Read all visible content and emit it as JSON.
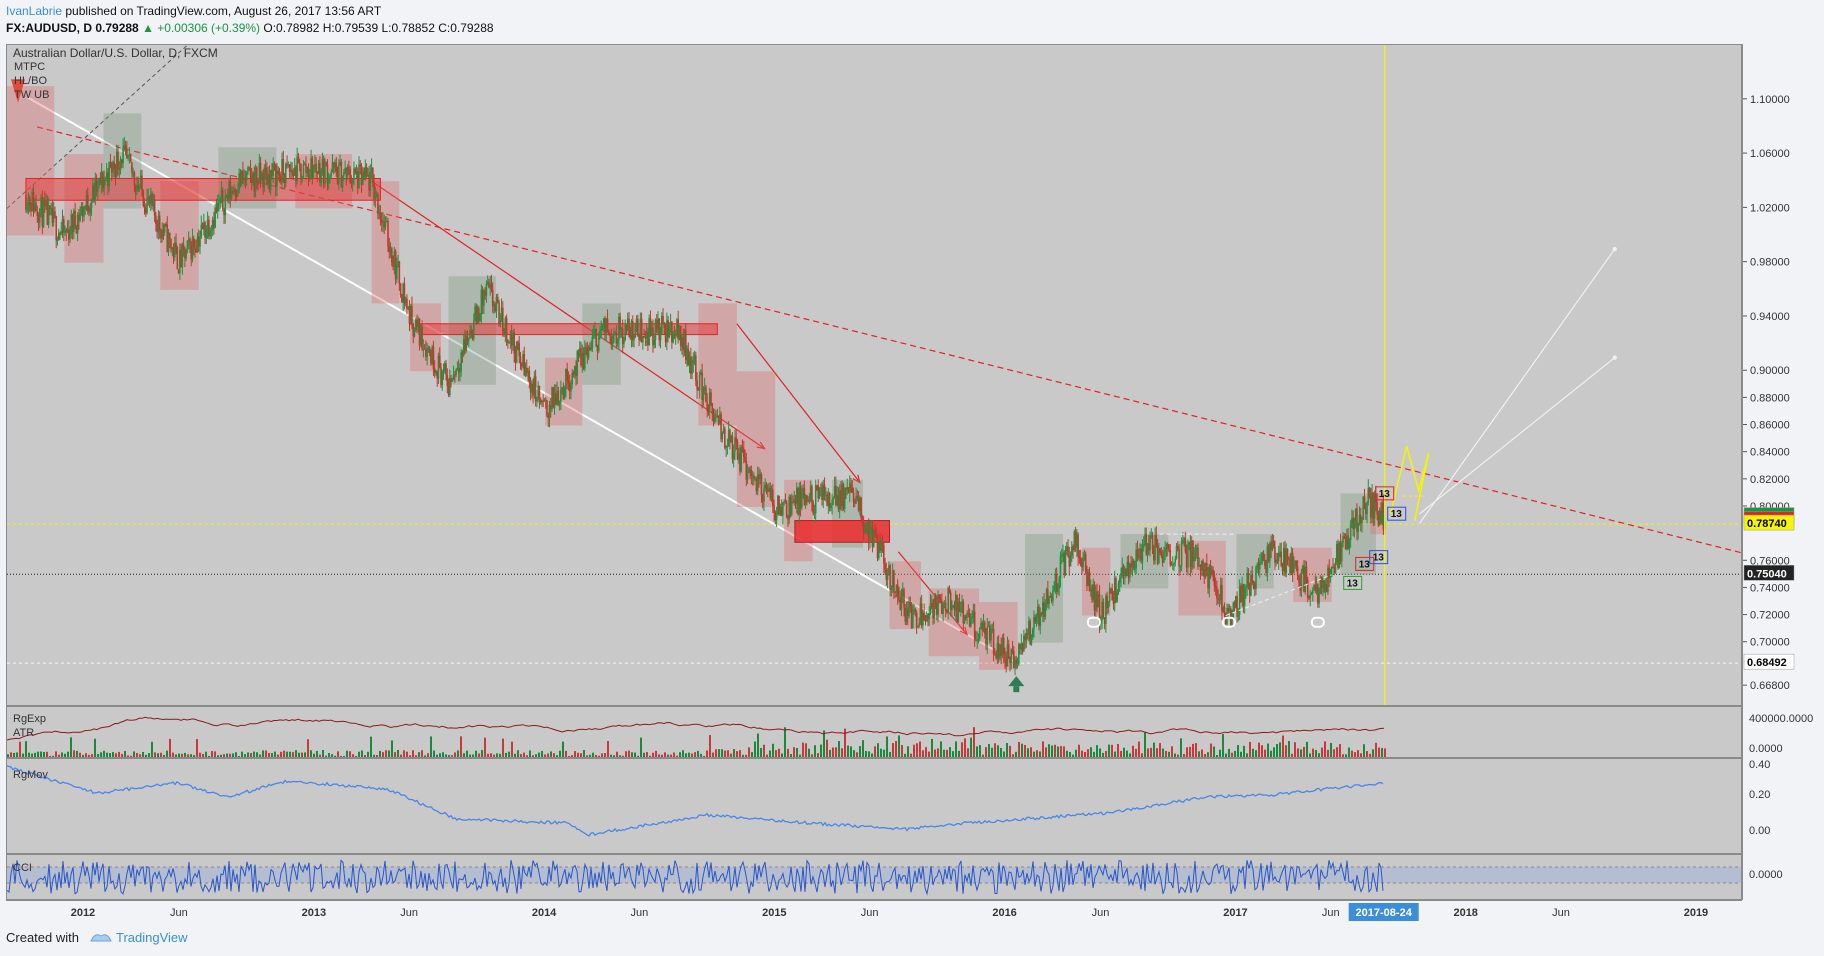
{
  "header": {
    "author": "IvanLabrie",
    "published": " published on TradingView.com, August 26, 2017 13:56 ART",
    "symbol": "FX:AUDUSD, D",
    "last": "0.79288",
    "change": "▲ +0.00306 (+0.39%)",
    "ohlc": "O:0.78982 H:0.79539 L:0.78852 C:0.79288"
  },
  "chart_title": "Australian Dollar/U.S. Dollar, D, FXCM",
  "indicator_labels": [
    "MTPC",
    "HL/BO",
    "TW UB"
  ],
  "pane_labels": {
    "volume_1": "RgExp",
    "volume_2": "ATR",
    "movement": "RgMov",
    "cci": "CCI"
  },
  "price_axis": {
    "ticks": [
      "1.10000",
      "1.06000",
      "1.02000",
      "0.98000",
      "0.94000",
      "0.90000",
      "0.88000",
      "0.86000",
      "0.84000",
      "0.82000",
      "0.80000",
      "0.76000",
      "0.74000",
      "0.72000",
      "0.70000",
      "0.66800"
    ],
    "tags": [
      {
        "label": "0.79288",
        "value": 0.79288,
        "color": "#1a9641",
        "text": "#ffffff"
      },
      {
        "label": "0.78982",
        "value": 0.78982,
        "color": "#e32222",
        "text": "#ffffff"
      },
      {
        "label": "0.78740",
        "value": 0.7874,
        "color": "#f5f500",
        "text": "#000000"
      },
      {
        "label": "0.75040",
        "value": 0.7504,
        "color": "#222222",
        "text": "#ffffff"
      },
      {
        "label": "0.68492",
        "value": 0.68492,
        "color": "#ffffff",
        "text": "#000000"
      }
    ]
  },
  "volume_axis": {
    "ticks": [
      "400000.0000",
      "0.0000"
    ]
  },
  "movement_axis": {
    "ticks": [
      "0.40",
      "0.20",
      "0.00"
    ]
  },
  "cci_axis": {
    "ticks": [
      "0.0000"
    ]
  },
  "time_axis": {
    "labels": [
      "2012",
      "Jun",
      "2013",
      "Jun",
      "2014",
      "Jun",
      "2015",
      "Jun",
      "2016",
      "Jun",
      "2017",
      "Jun",
      "2018",
      "Jun",
      "2019"
    ],
    "cursor_label": "2017-08-24"
  },
  "annotations": {
    "td_counts": [
      "13",
      "13",
      "13",
      "13",
      "13"
    ]
  },
  "colors": {
    "up": "#1a9641",
    "down": "#c0392b",
    "trend": "#e32222",
    "projection": "#f5f500",
    "oscillator": "#4a86e8"
  },
  "footer": {
    "created": "Created with",
    "brand": "TradingView"
  },
  "chart_data": {
    "type": "candlestick",
    "title": "Australian Dollar/U.S. Dollar, D, FXCM",
    "x_range": [
      "2011-09",
      "2019-02"
    ],
    "ylim": [
      0.668,
      1.12
    ],
    "approx_close_path": [
      {
        "t": "2011-10-01",
        "price": 1.03
      },
      {
        "t": "2011-12-01",
        "price": 1.0
      },
      {
        "t": "2012-03-01",
        "price": 1.06
      },
      {
        "t": "2012-06-01",
        "price": 0.98
      },
      {
        "t": "2012-09-01",
        "price": 1.04
      },
      {
        "t": "2013-01-01",
        "price": 1.05
      },
      {
        "t": "2013-04-01",
        "price": 1.04
      },
      {
        "t": "2013-06-01",
        "price": 0.94
      },
      {
        "t": "2013-08-01",
        "price": 0.89
      },
      {
        "t": "2013-10-01",
        "price": 0.96
      },
      {
        "t": "2014-01-01",
        "price": 0.87
      },
      {
        "t": "2014-04-01",
        "price": 0.93
      },
      {
        "t": "2014-08-01",
        "price": 0.93
      },
      {
        "t": "2014-10-01",
        "price": 0.86
      },
      {
        "t": "2015-01-01",
        "price": 0.8
      },
      {
        "t": "2015-05-01",
        "price": 0.81
      },
      {
        "t": "2015-08-01",
        "price": 0.72
      },
      {
        "t": "2015-10-01",
        "price": 0.73
      },
      {
        "t": "2016-01-15",
        "price": 0.685
      },
      {
        "t": "2016-04-20",
        "price": 0.775
      },
      {
        "t": "2016-06-01",
        "price": 0.72
      },
      {
        "t": "2016-08-01",
        "price": 0.77
      },
      {
        "t": "2016-11-01",
        "price": 0.765
      },
      {
        "t": "2016-12-20",
        "price": 0.72
      },
      {
        "t": "2017-03-01",
        "price": 0.77
      },
      {
        "t": "2017-05-10",
        "price": 0.735
      },
      {
        "t": "2017-07-27",
        "price": 0.805
      },
      {
        "t": "2017-08-24",
        "price": 0.79288
      }
    ],
    "horizontal_levels": [
      0.7504,
      0.68492,
      0.7874
    ],
    "ohlc_last": {
      "open": 0.78982,
      "high": 0.79539,
      "low": 0.78852,
      "close": 0.79288
    }
  }
}
